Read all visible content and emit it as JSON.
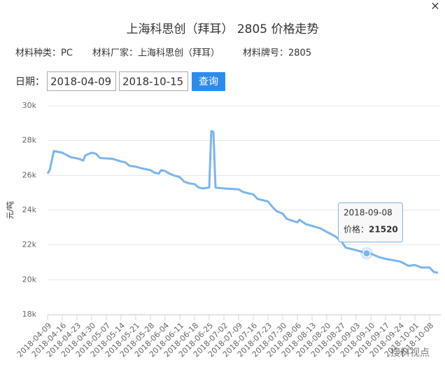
{
  "close": "×",
  "info": {
    "kind": "材料种类：PC",
    "maker": "材料厂家：上海科思创（拜耳）",
    "grade": "材料牌号：2805"
  },
  "query": {
    "label": "日期：",
    "start": "2018-04-09",
    "end": "2018-10-15",
    "button": "查询"
  },
  "tooltip_label": "价格：",
  "watermark": "搜料视点",
  "chart_data": {
    "type": "line",
    "title": "上海科思创（拜耳） 2805 价格走势",
    "y_label": "元/吨",
    "color": "#7cb5ec",
    "grid": true,
    "x": [
      "2018-04-09",
      "2018-04-10",
      "2018-04-12",
      "2018-04-16",
      "2018-04-20",
      "2018-04-24",
      "2018-04-26",
      "2018-04-27",
      "2018-04-30",
      "2018-05-02",
      "2018-05-04",
      "2018-05-10",
      "2018-05-14",
      "2018-05-16",
      "2018-05-18",
      "2018-05-21",
      "2018-05-24",
      "2018-05-28",
      "2018-05-30",
      "2018-06-01",
      "2018-06-02",
      "2018-06-04",
      "2018-06-06",
      "2018-06-08",
      "2018-06-11",
      "2018-06-13",
      "2018-06-15",
      "2018-06-18",
      "2018-06-20",
      "2018-06-22",
      "2018-06-25",
      "2018-06-26",
      "2018-06-27",
      "2018-06-28",
      "2018-07-02",
      "2018-07-09",
      "2018-07-11",
      "2018-07-16",
      "2018-07-18",
      "2018-07-23",
      "2018-07-25",
      "2018-07-27",
      "2018-07-30",
      "2018-08-01",
      "2018-08-06",
      "2018-08-07",
      "2018-08-10",
      "2018-08-13",
      "2018-08-17",
      "2018-08-20",
      "2018-08-24",
      "2018-08-27",
      "2018-08-29",
      "2018-09-03",
      "2018-09-08",
      "2018-09-10",
      "2018-09-14",
      "2018-09-17",
      "2018-09-24",
      "2018-09-28",
      "2018-10-01",
      "2018-10-04",
      "2018-10-08",
      "2018-10-10",
      "2018-10-12"
    ],
    "values": [
      26100,
      26300,
      27400,
      27300,
      27050,
      26950,
      26850,
      27150,
      27300,
      27250,
      27000,
      26950,
      26800,
      26750,
      26550,
      26500,
      26400,
      26300,
      26150,
      26100,
      26300,
      26250,
      26100,
      26000,
      25900,
      25650,
      25550,
      25500,
      25300,
      25250,
      25300,
      28550,
      28500,
      25300,
      25250,
      25200,
      25050,
      24900,
      24650,
      24500,
      24200,
      23950,
      23800,
      23500,
      23300,
      23450,
      23200,
      23100,
      22950,
      22750,
      22500,
      22200,
      21850,
      21700,
      21520,
      21500,
      21300,
      21200,
      21050,
      20800,
      20850,
      20700,
      20700,
      20450,
      20400
    ],
    "xlim": [
      "2018-04-09",
      "2018-10-12"
    ],
    "xticks": [
      "2018-04-09",
      "2018-04-16",
      "2018-04-23",
      "2018-04-30",
      "2018-05-07",
      "2018-05-14",
      "2018-05-21",
      "2018-05-28",
      "2018-06-04",
      "2018-06-11",
      "2018-06-18",
      "2018-06-25",
      "2018-07-02",
      "2018-07-09",
      "2018-07-16",
      "2018-07-23",
      "2018-07-30",
      "2018-08-06",
      "2018-08-13",
      "2018-08-20",
      "2018-08-27",
      "2018-09-03",
      "2018-09-10",
      "2018-09-17",
      "2018-09-24",
      "2018-10-01",
      "2018-10-08"
    ],
    "ylim": [
      18000,
      30000
    ],
    "yticks": [
      {
        "value": 18000,
        "label": "18k"
      },
      {
        "value": 20000,
        "label": "20k"
      },
      {
        "value": 22000,
        "label": "22k"
      },
      {
        "value": 24000,
        "label": "24k"
      },
      {
        "value": 26000,
        "label": "26k"
      },
      {
        "value": 28000,
        "label": "28k"
      },
      {
        "value": 30000,
        "label": "30k"
      }
    ]
  }
}
